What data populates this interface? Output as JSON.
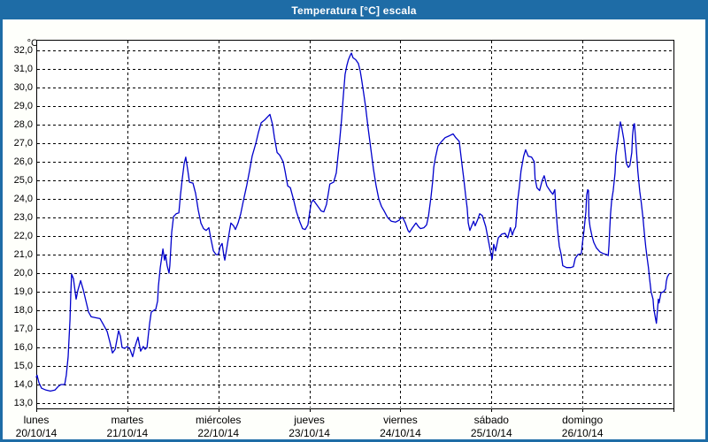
{
  "window": {
    "title": "Temperatura [°C] escala"
  },
  "colors": {
    "titlebar_bg": "#1E6CA6",
    "window_border": "#1E6CA6",
    "plot_bg": "#FFFFFF",
    "grid": "#000000",
    "line": "#0000CC",
    "text": "#000000"
  },
  "chart_data": {
    "type": "line",
    "title": "Temperatura [°C] escala",
    "y_unit": "°C",
    "ylabel": "Temperatura [°C]",
    "ylim": [
      13.0,
      32.0
    ],
    "y_tick_step": 1.0,
    "y_tick_labels": [
      "32,0",
      "31,0",
      "30,0",
      "29,0",
      "28,0",
      "27,0",
      "26,0",
      "25,0",
      "24,0",
      "23,0",
      "22,0",
      "21,0",
      "20,0",
      "19,0",
      "18,0",
      "17,0",
      "16,0",
      "15,0",
      "14,0",
      "13,0"
    ],
    "x_range_hours": [
      0,
      168
    ],
    "x_day_span_hours": 24,
    "grid": "dashed",
    "legend": "none",
    "x_days": [
      {
        "weekday": "lunes",
        "date": "20/10/14"
      },
      {
        "weekday": "martes",
        "date": "21/10/14"
      },
      {
        "weekday": "miércoles",
        "date": "22/10/14"
      },
      {
        "weekday": "jueves",
        "date": "23/10/14"
      },
      {
        "weekday": "viernes",
        "date": "24/10/14"
      },
      {
        "weekday": "sábado",
        "date": "25/10/14"
      },
      {
        "weekday": "domingo",
        "date": "26/10/14"
      }
    ],
    "series": [
      {
        "name": "Temperatura",
        "color": "#0000CC",
        "points": [
          [
            0,
            14.4
          ],
          [
            0.2,
            14.5
          ],
          [
            0.7,
            14.1
          ],
          [
            1.4,
            13.8
          ],
          [
            2.6,
            13.7
          ],
          [
            3.7,
            13.65
          ],
          [
            4.9,
            13.7
          ],
          [
            5.8,
            13.9
          ],
          [
            6.5,
            14.0
          ],
          [
            7.5,
            14.0
          ],
          [
            7.9,
            14.5
          ],
          [
            8.4,
            15.5
          ],
          [
            8.9,
            17.5
          ],
          [
            9.1,
            18.9
          ],
          [
            9.3,
            19.95
          ],
          [
            9.8,
            19.7
          ],
          [
            10.5,
            18.6
          ],
          [
            11.0,
            19.1
          ],
          [
            11.7,
            19.6
          ],
          [
            12.4,
            19.1
          ],
          [
            13.1,
            18.5
          ],
          [
            13.8,
            17.9
          ],
          [
            14.5,
            17.65
          ],
          [
            15.6,
            17.6
          ],
          [
            16.8,
            17.55
          ],
          [
            17.5,
            17.3
          ],
          [
            18.7,
            16.85
          ],
          [
            19.4,
            16.3
          ],
          [
            20.1,
            15.7
          ],
          [
            20.8,
            15.9
          ],
          [
            21.7,
            16.9
          ],
          [
            22.2,
            16.6
          ],
          [
            22.6,
            16.0
          ],
          [
            23.3,
            15.95
          ],
          [
            24.0,
            16.05
          ],
          [
            24.7,
            15.9
          ],
          [
            25.4,
            15.5
          ],
          [
            26.1,
            16.1
          ],
          [
            26.8,
            16.55
          ],
          [
            27.5,
            15.8
          ],
          [
            28.2,
            16.05
          ],
          [
            28.7,
            15.9
          ],
          [
            29.2,
            16.0
          ],
          [
            29.6,
            16.8
          ],
          [
            29.9,
            17.3
          ],
          [
            30.3,
            17.9
          ],
          [
            31.0,
            18.0
          ],
          [
            31.5,
            18.05
          ],
          [
            32.0,
            18.5
          ],
          [
            32.2,
            19.3
          ],
          [
            32.7,
            20.3
          ],
          [
            33.1,
            20.9
          ],
          [
            33.4,
            21.3
          ],
          [
            33.8,
            20.7
          ],
          [
            34.1,
            21.0
          ],
          [
            34.5,
            20.4
          ],
          [
            35.0,
            20.0
          ],
          [
            35.2,
            20.4
          ],
          [
            35.7,
            22.2
          ],
          [
            36.2,
            23.05
          ],
          [
            36.9,
            23.2
          ],
          [
            37.6,
            23.25
          ],
          [
            38.0,
            24.2
          ],
          [
            38.5,
            25.1
          ],
          [
            39.0,
            25.9
          ],
          [
            39.4,
            26.25
          ],
          [
            39.9,
            25.6
          ],
          [
            40.4,
            24.9
          ],
          [
            41.3,
            24.85
          ],
          [
            42.0,
            24.3
          ],
          [
            42.7,
            23.4
          ],
          [
            43.4,
            22.7
          ],
          [
            44.1,
            22.4
          ],
          [
            44.8,
            22.3
          ],
          [
            45.5,
            22.45
          ],
          [
            46.0,
            21.9
          ],
          [
            46.7,
            21.2
          ],
          [
            47.4,
            21.0
          ],
          [
            48.0,
            21.0
          ],
          [
            48.5,
            21.45
          ],
          [
            49.0,
            21.6
          ],
          [
            49.5,
            20.9
          ],
          [
            49.7,
            20.7
          ],
          [
            50.2,
            21.3
          ],
          [
            50.9,
            22.2
          ],
          [
            51.3,
            22.7
          ],
          [
            52.0,
            22.55
          ],
          [
            52.5,
            22.35
          ],
          [
            53.2,
            22.7
          ],
          [
            53.9,
            23.2
          ],
          [
            54.6,
            23.9
          ],
          [
            55.5,
            24.75
          ],
          [
            56.2,
            25.5
          ],
          [
            56.9,
            26.3
          ],
          [
            57.9,
            27.0
          ],
          [
            58.6,
            27.6
          ],
          [
            59.3,
            28.1
          ],
          [
            60.2,
            28.25
          ],
          [
            60.9,
            28.4
          ],
          [
            61.6,
            28.55
          ],
          [
            62.3,
            28.0
          ],
          [
            62.8,
            27.3
          ],
          [
            63.5,
            26.5
          ],
          [
            64.2,
            26.35
          ],
          [
            65.1,
            26.0
          ],
          [
            65.6,
            25.5
          ],
          [
            66.3,
            24.7
          ],
          [
            67.0,
            24.6
          ],
          [
            67.9,
            23.9
          ],
          [
            68.6,
            23.3
          ],
          [
            69.5,
            22.75
          ],
          [
            70.2,
            22.4
          ],
          [
            70.9,
            22.35
          ],
          [
            71.6,
            22.6
          ],
          [
            72.1,
            23.3
          ],
          [
            72.5,
            23.8
          ],
          [
            73.0,
            23.95
          ],
          [
            73.7,
            23.75
          ],
          [
            74.4,
            23.55
          ],
          [
            75.1,
            23.35
          ],
          [
            75.8,
            23.3
          ],
          [
            76.5,
            23.7
          ],
          [
            77.0,
            24.3
          ],
          [
            77.4,
            24.8
          ],
          [
            78.4,
            24.9
          ],
          [
            79.1,
            25.4
          ],
          [
            79.5,
            26.2
          ],
          [
            80.0,
            27.2
          ],
          [
            80.5,
            28.3
          ],
          [
            80.9,
            29.4
          ],
          [
            81.4,
            30.7
          ],
          [
            81.9,
            31.2
          ],
          [
            82.3,
            31.5
          ],
          [
            82.8,
            31.75
          ],
          [
            83.1,
            31.85
          ],
          [
            83.5,
            31.6
          ],
          [
            84.2,
            31.5
          ],
          [
            84.9,
            31.3
          ],
          [
            85.4,
            30.9
          ],
          [
            85.8,
            30.4
          ],
          [
            86.3,
            29.7
          ],
          [
            86.8,
            29.0
          ],
          [
            87.5,
            27.8
          ],
          [
            88.2,
            26.7
          ],
          [
            88.9,
            25.6
          ],
          [
            89.6,
            24.7
          ],
          [
            90.3,
            24.0
          ],
          [
            91.0,
            23.6
          ],
          [
            91.7,
            23.35
          ],
          [
            92.6,
            23.0
          ],
          [
            93.6,
            22.8
          ],
          [
            94.7,
            22.75
          ],
          [
            95.7,
            22.85
          ],
          [
            96.0,
            22.95
          ],
          [
            96.6,
            23.0
          ],
          [
            97.3,
            22.7
          ],
          [
            98.0,
            22.3
          ],
          [
            98.4,
            22.2
          ],
          [
            99.2,
            22.45
          ],
          [
            100.1,
            22.7
          ],
          [
            100.8,
            22.5
          ],
          [
            101.3,
            22.4
          ],
          [
            102.2,
            22.45
          ],
          [
            102.9,
            22.6
          ],
          [
            103.4,
            23.05
          ],
          [
            104.1,
            24.15
          ],
          [
            104.5,
            24.95
          ],
          [
            104.8,
            25.7
          ],
          [
            105.2,
            26.2
          ],
          [
            105.9,
            26.85
          ],
          [
            106.9,
            27.1
          ],
          [
            107.8,
            27.3
          ],
          [
            108.9,
            27.4
          ],
          [
            109.9,
            27.5
          ],
          [
            110.6,
            27.3
          ],
          [
            111.5,
            27.1
          ],
          [
            112.2,
            25.9
          ],
          [
            112.7,
            25.1
          ],
          [
            113.2,
            24.2
          ],
          [
            113.6,
            23.5
          ],
          [
            113.9,
            22.7
          ],
          [
            114.3,
            22.3
          ],
          [
            115.3,
            22.8
          ],
          [
            115.7,
            22.55
          ],
          [
            116.4,
            22.9
          ],
          [
            116.9,
            23.2
          ],
          [
            117.6,
            23.1
          ],
          [
            118.5,
            22.5
          ],
          [
            119.2,
            21.75
          ],
          [
            119.9,
            21.0
          ],
          [
            120.2,
            20.75
          ],
          [
            120.6,
            21.55
          ],
          [
            121.1,
            21.2
          ],
          [
            121.8,
            21.9
          ],
          [
            122.7,
            22.1
          ],
          [
            123.6,
            22.15
          ],
          [
            124.3,
            21.9
          ],
          [
            125.0,
            22.45
          ],
          [
            125.5,
            22.05
          ],
          [
            125.9,
            22.3
          ],
          [
            126.4,
            22.5
          ],
          [
            126.9,
            23.9
          ],
          [
            127.4,
            24.7
          ],
          [
            127.8,
            25.5
          ],
          [
            128.5,
            26.3
          ],
          [
            129.0,
            26.65
          ],
          [
            129.7,
            26.3
          ],
          [
            130.6,
            26.25
          ],
          [
            131.3,
            26.0
          ],
          [
            131.5,
            25.1
          ],
          [
            132.0,
            24.6
          ],
          [
            132.7,
            24.45
          ],
          [
            133.4,
            25.0
          ],
          [
            133.9,
            25.25
          ],
          [
            134.6,
            24.7
          ],
          [
            135.6,
            24.4
          ],
          [
            136.2,
            24.25
          ],
          [
            136.7,
            24.5
          ],
          [
            137.0,
            23.5
          ],
          [
            137.4,
            22.4
          ],
          [
            137.9,
            21.45
          ],
          [
            138.4,
            21.0
          ],
          [
            138.8,
            20.4
          ],
          [
            139.8,
            20.3
          ],
          [
            140.9,
            20.3
          ],
          [
            141.6,
            20.35
          ],
          [
            142.1,
            20.8
          ],
          [
            142.8,
            21.0
          ],
          [
            143.7,
            21.05
          ],
          [
            144.0,
            21.6
          ],
          [
            144.4,
            22.3
          ],
          [
            144.9,
            23.3
          ],
          [
            145.1,
            24.2
          ],
          [
            145.4,
            24.5
          ],
          [
            145.6,
            24.45
          ],
          [
            145.7,
            23.0
          ],
          [
            146.0,
            22.5
          ],
          [
            146.5,
            22.0
          ],
          [
            147.0,
            21.65
          ],
          [
            147.7,
            21.35
          ],
          [
            148.6,
            21.15
          ],
          [
            149.5,
            21.05
          ],
          [
            150.4,
            21.0
          ],
          [
            150.8,
            20.95
          ],
          [
            151.0,
            21.5
          ],
          [
            151.2,
            22.4
          ],
          [
            151.4,
            23.2
          ],
          [
            151.7,
            23.9
          ],
          [
            152.1,
            24.45
          ],
          [
            152.6,
            25.4
          ],
          [
            152.8,
            26.3
          ],
          [
            153.3,
            27.1
          ],
          [
            153.7,
            27.75
          ],
          [
            154.0,
            28.15
          ],
          [
            154.4,
            27.8
          ],
          [
            154.9,
            27.2
          ],
          [
            155.6,
            25.9
          ],
          [
            156.1,
            25.7
          ],
          [
            156.5,
            25.8
          ],
          [
            157.0,
            26.5
          ],
          [
            157.2,
            27.4
          ],
          [
            157.5,
            28.0
          ],
          [
            157.7,
            28.05
          ],
          [
            158.1,
            27.0
          ],
          [
            158.6,
            25.5
          ],
          [
            159.1,
            24.4
          ],
          [
            159.5,
            23.8
          ],
          [
            160.0,
            22.9
          ],
          [
            160.3,
            22.2
          ],
          [
            160.7,
            21.4
          ],
          [
            161.0,
            20.9
          ],
          [
            161.4,
            20.3
          ],
          [
            161.7,
            19.7
          ],
          [
            162.1,
            19.0
          ],
          [
            162.6,
            18.6
          ],
          [
            162.8,
            18.1
          ],
          [
            163.3,
            17.5
          ],
          [
            163.5,
            17.3
          ],
          [
            164.0,
            18.6
          ],
          [
            164.2,
            18.4
          ],
          [
            164.7,
            18.95
          ],
          [
            165.4,
            19.0
          ],
          [
            165.9,
            19.15
          ],
          [
            166.1,
            19.55
          ],
          [
            166.4,
            19.8
          ],
          [
            166.8,
            19.95
          ]
        ]
      }
    ]
  }
}
